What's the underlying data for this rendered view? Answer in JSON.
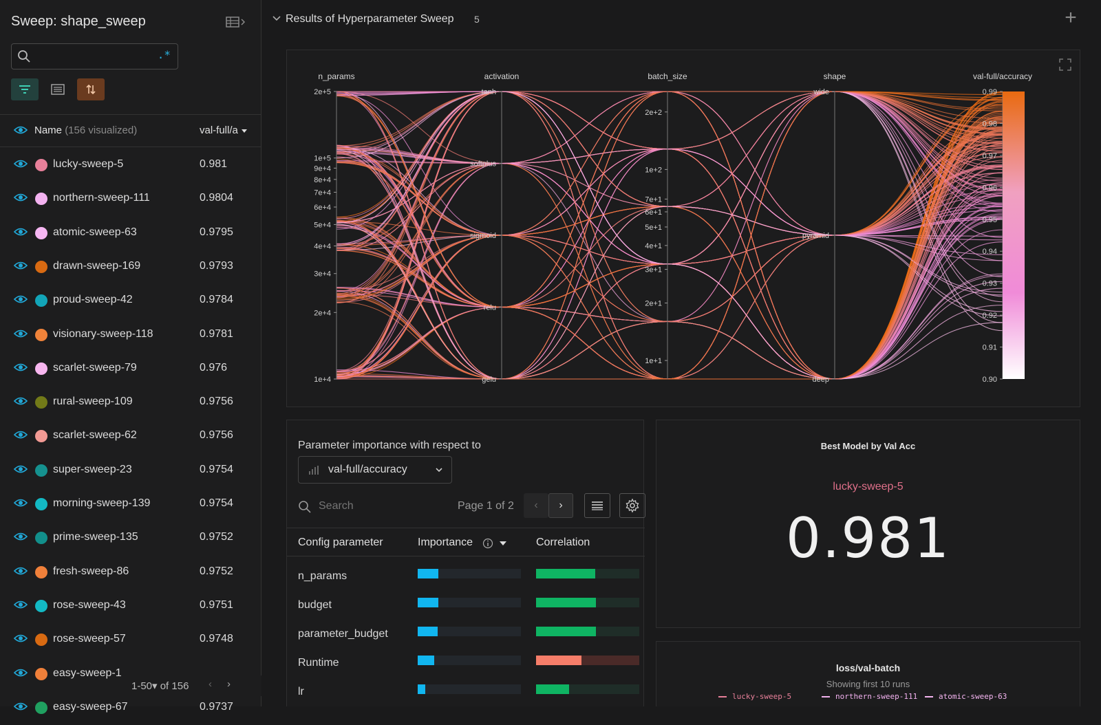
{
  "sidebar": {
    "title": "Sweep: shape_sweep",
    "search_value": "",
    "regex_symbol": ".*",
    "header_name": "Name",
    "header_visualized": "(156 visualized)",
    "header_metric": "val-full/a",
    "pager_label": "1-50▾ of 156",
    "runs": [
      {
        "name": "lucky-sweep-5",
        "value": "0.981",
        "color": "#e8809a"
      },
      {
        "name": "northern-sweep-111",
        "value": "0.9804",
        "color": "#f3b2f0"
      },
      {
        "name": "atomic-sweep-63",
        "value": "0.9795",
        "color": "#f6b6f2"
      },
      {
        "name": "drawn-sweep-169",
        "value": "0.9793",
        "color": "#d86a12"
      },
      {
        "name": "proud-sweep-42",
        "value": "0.9784",
        "color": "#12a5b8"
      },
      {
        "name": "visionary-sweep-118",
        "value": "0.9781",
        "color": "#f0833a"
      },
      {
        "name": "scarlet-sweep-79",
        "value": "0.976",
        "color": "#f7b6ef"
      },
      {
        "name": "rural-sweep-109",
        "value": "0.9756",
        "color": "#727a18"
      },
      {
        "name": "scarlet-sweep-62",
        "value": "0.9756",
        "color": "#f29a94"
      },
      {
        "name": "super-sweep-23",
        "value": "0.9754",
        "color": "#15918f"
      },
      {
        "name": "morning-sweep-139",
        "value": "0.9754",
        "color": "#13b9c4"
      },
      {
        "name": "prime-sweep-135",
        "value": "0.9752",
        "color": "#128f8b"
      },
      {
        "name": "fresh-sweep-86",
        "value": "0.9752",
        "color": "#f0803a"
      },
      {
        "name": "rose-sweep-43",
        "value": "0.9751",
        "color": "#13b9c4"
      },
      {
        "name": "rose-sweep-57",
        "value": "0.9748",
        "color": "#d86a12"
      },
      {
        "name": "easy-sweep-1",
        "value": "",
        "color": "#f0803a"
      },
      {
        "name": "easy-sweep-67",
        "value": "0.9737",
        "color": "#20a060"
      }
    ]
  },
  "section": {
    "title": "Results of Hyperparameter Sweep",
    "count": "5"
  },
  "parallel": {
    "axes": [
      "n_params",
      "activation",
      "batch_size",
      "shape",
      "val-full/accuracy"
    ],
    "n_params_ticks": [
      "2e+5",
      "1e+5",
      "9e+4",
      "8e+4",
      "7e+4",
      "6e+4",
      "5e+4",
      "4e+4",
      "3e+4",
      "2e+4",
      "1e+4"
    ],
    "activation_ticks": [
      "tanh",
      "softplus",
      "sigmoid",
      "relu",
      "gelu"
    ],
    "batch_size_ticks": [
      "2e+2",
      "1e+2",
      "7e+1",
      "6e+1",
      "5e+1",
      "4e+1",
      "3e+1",
      "2e+1",
      "1e+1"
    ],
    "shape_ticks": [
      "wide",
      "pyramid",
      "deep"
    ],
    "accuracy_ticks": [
      "0.99",
      "0.98",
      "0.97",
      "0.96",
      "0.95",
      "0.94",
      "0.93",
      "0.92",
      "0.91",
      "0.90"
    ],
    "colors": {
      "low": "#ffffff",
      "mid": "#f08bd8",
      "high": "#e96a10"
    }
  },
  "importance": {
    "title": "Parameter importance with respect to",
    "metric": "val-full/accuracy",
    "search_placeholder": "Search",
    "page_label": "Page 1 of 2",
    "col_param": "Config parameter",
    "col_importance": "Importance",
    "col_correlation": "Correlation",
    "rows": [
      {
        "name": "n_params",
        "importance": 0.2,
        "correlation": 0.57,
        "sign": "positive"
      },
      {
        "name": "budget",
        "importance": 0.2,
        "correlation": 0.58,
        "sign": "positive"
      },
      {
        "name": "parameter_budget",
        "importance": 0.19,
        "correlation": 0.58,
        "sign": "positive"
      },
      {
        "name": "Runtime",
        "importance": 0.16,
        "correlation": 0.44,
        "sign": "negative"
      },
      {
        "name": "lr",
        "importance": 0.07,
        "correlation": 0.32,
        "sign": "positive"
      }
    ],
    "colors": {
      "importance": "#11b6f0",
      "positive": "#0fb463",
      "negative": "#f57d69"
    }
  },
  "best": {
    "title": "Best Model by Val Acc",
    "run": "lucky-sweep-5",
    "value": "0.981"
  },
  "loss": {
    "title": "loss/val-batch",
    "subtitle": "Showing first 10 runs",
    "legend": [
      {
        "name": "lucky-sweep-5",
        "color": "#e8809a"
      },
      {
        "name": "northern-sweep-111",
        "color": "#f3b2f0"
      },
      {
        "name": "atomic-sweep-63",
        "color": "#f6b6f2"
      }
    ]
  }
}
